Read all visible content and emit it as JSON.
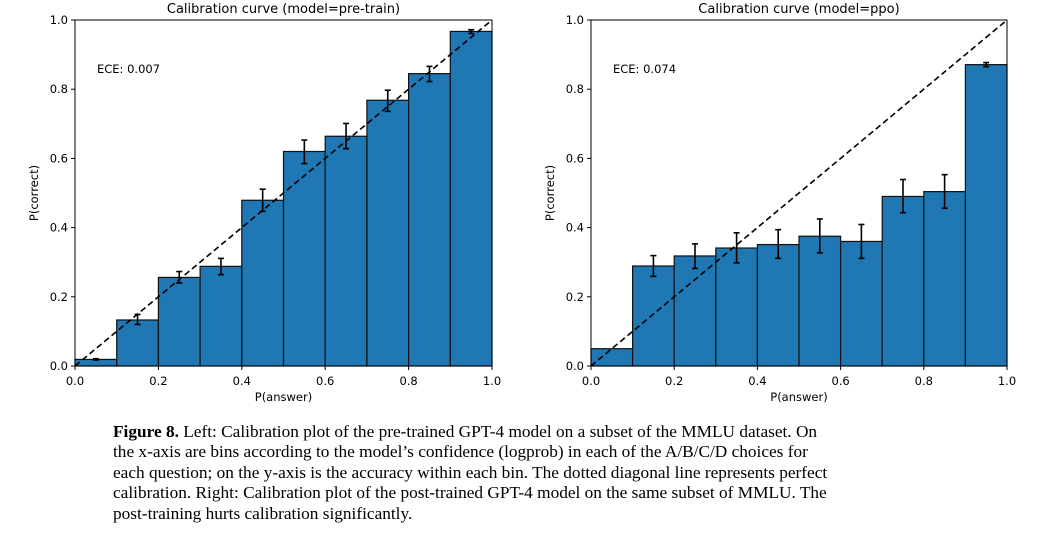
{
  "chart_data": [
    {
      "type": "bar",
      "title": "Calibration curve (model=pre-train)",
      "xlabel": "P(answer)",
      "ylabel": "P(correct)",
      "xlim": [
        0,
        1
      ],
      "ylim": [
        0,
        1
      ],
      "xticks": [
        "0.0",
        "0.2",
        "0.4",
        "0.6",
        "0.8",
        "1.0"
      ],
      "yticks": [
        "0.0",
        "0.2",
        "0.4",
        "0.6",
        "0.8",
        "1.0"
      ],
      "annotation": "ECE: 0.007",
      "bin_edges": [
        0,
        0.1,
        0.2,
        0.3,
        0.4,
        0.5,
        0.6,
        0.7,
        0.8,
        0.9,
        1.0
      ],
      "values": [
        0.019,
        0.133,
        0.256,
        0.288,
        0.479,
        0.62,
        0.664,
        0.768,
        0.845,
        0.967
      ],
      "error_low": [
        0.017,
        0.12,
        0.24,
        0.264,
        0.447,
        0.585,
        0.628,
        0.736,
        0.822,
        0.961
      ],
      "error_high": [
        0.021,
        0.149,
        0.273,
        0.311,
        0.511,
        0.653,
        0.701,
        0.797,
        0.866,
        0.972
      ],
      "reference_line": "perfect calibration (dashed diagonal)",
      "grid": false,
      "color": "#1f77b4"
    },
    {
      "type": "bar",
      "title": "Calibration curve (model=ppo)",
      "xlabel": "P(answer)",
      "ylabel": "P(correct)",
      "xlim": [
        0,
        1
      ],
      "ylim": [
        0,
        1
      ],
      "xticks": [
        "0.0",
        "0.2",
        "0.4",
        "0.6",
        "0.8",
        "1.0"
      ],
      "yticks": [
        "0.0",
        "0.2",
        "0.4",
        "0.6",
        "0.8",
        "1.0"
      ],
      "annotation": "ECE: 0.074",
      "bin_edges": [
        0,
        0.1,
        0.2,
        0.3,
        0.4,
        0.5,
        0.6,
        0.7,
        0.8,
        0.9,
        1.0
      ],
      "values": [
        0.05,
        0.289,
        0.318,
        0.341,
        0.351,
        0.375,
        0.36,
        0.49,
        0.504,
        0.871
      ],
      "error_low": [
        0.05,
        0.259,
        0.282,
        0.298,
        0.311,
        0.327,
        0.311,
        0.443,
        0.456,
        0.865
      ],
      "error_high": [
        0.05,
        0.319,
        0.353,
        0.385,
        0.394,
        0.425,
        0.409,
        0.539,
        0.553,
        0.877
      ],
      "reference_line": "perfect calibration (dashed diagonal)",
      "grid": false,
      "color": "#1f77b4"
    }
  ],
  "caption": {
    "label": "Figure 8.",
    "lines": [
      " Left: Calibration plot of the pre-trained GPT-4 model on a subset of the MMLU dataset. On",
      "the x-axis are bins according to the model’s confidence (logprob) in each of the A/B/C/D choices for",
      "each question; on the y-axis is the accuracy within each bin. The dotted diagonal line represents perfect",
      "calibration. Right: Calibration plot of the post-trained GPT-4 model on the same subset of MMLU. The",
      "post-training hurts calibration significantly."
    ]
  }
}
